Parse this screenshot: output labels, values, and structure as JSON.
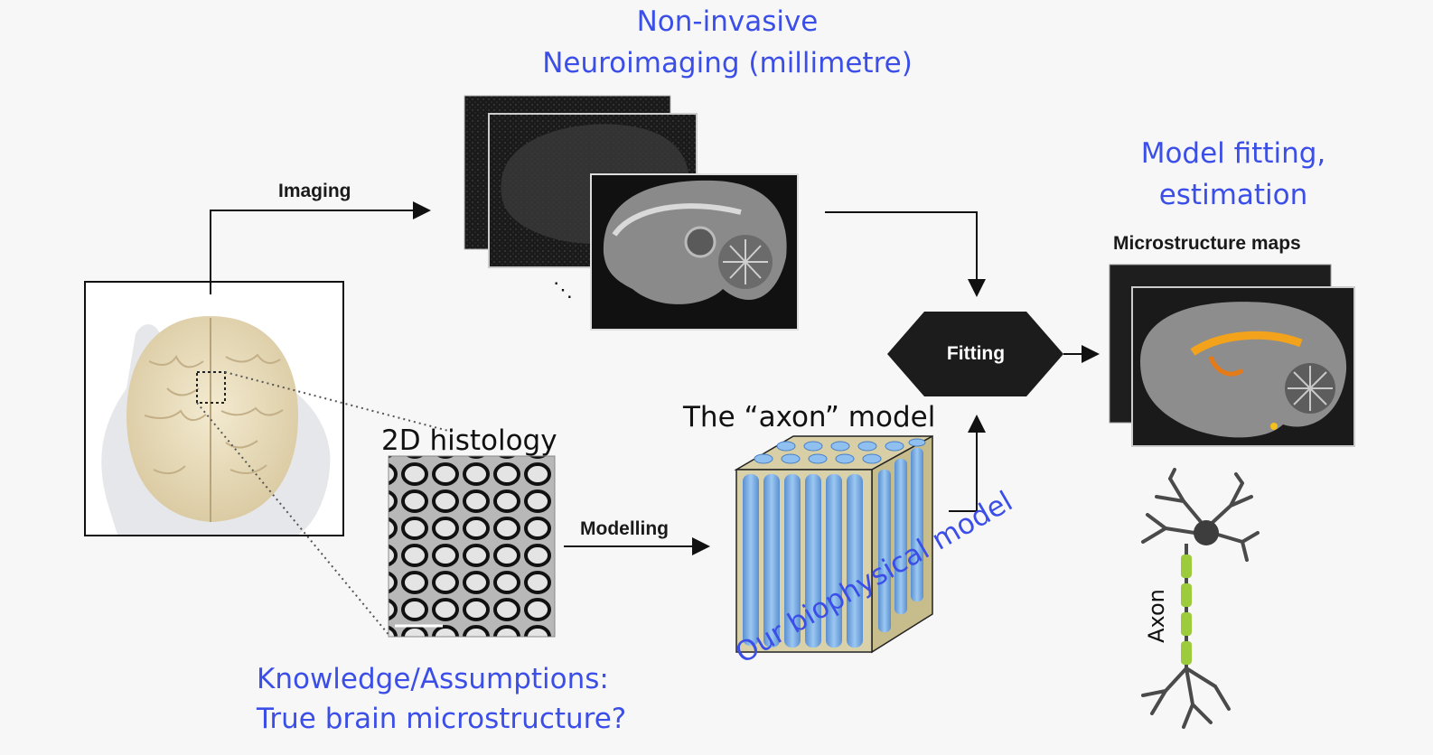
{
  "labels": {
    "neuro_line1": "Non-invasive",
    "neuro_line2": "Neuroimaging (millimetre)",
    "imaging": "Imaging",
    "ellipsis": "⋱",
    "fit_title_line1": "Model fitting,",
    "fit_title_line2": "estimation",
    "maps": "Microstructure maps",
    "fitting": "Fitting",
    "axon_model": "The “axon” model",
    "histology": "2D histology",
    "modelling": "Modelling",
    "knowledge_line1": "Knowledge/Assumptions:",
    "knowledge_line2": "True brain microstructure?",
    "biophysical": "Our biophysical model",
    "axon": "Axon"
  },
  "colors": {
    "blue_text": "#3b4fe8",
    "hexagon": "#1c1c1c",
    "cylinders": "#7ab2ea",
    "myelin": "#9ccc3c",
    "map_highlight": "#f2a21b"
  }
}
